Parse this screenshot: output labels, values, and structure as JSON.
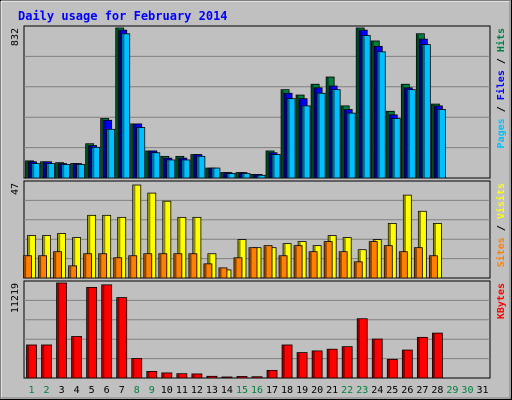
{
  "chart_data": [
    {
      "type": "bar",
      "title": "Daily usage for February 2014",
      "ylabel_parts": [
        "Pages",
        "Files",
        "Hits"
      ],
      "ytick_top": "832",
      "categories": [
        "1",
        "2",
        "3",
        "4",
        "5",
        "6",
        "7",
        "8",
        "9",
        "10",
        "11",
        "12",
        "13",
        "14",
        "15",
        "16",
        "17",
        "18",
        "19",
        "20",
        "21",
        "22",
        "23",
        "24",
        "25",
        "26",
        "27",
        "28",
        "29",
        "30",
        "31"
      ],
      "ylim": [
        0,
        832
      ],
      "series": [
        {
          "name": "Hits",
          "color": "#008040",
          "values": [
            95,
            90,
            85,
            80,
            190,
            330,
            832,
            300,
            150,
            120,
            120,
            130,
            55,
            30,
            30,
            20,
            150,
            490,
            460,
            520,
            560,
            400,
            832,
            760,
            370,
            520,
            800,
            410,
            0,
            0,
            0
          ]
        },
        {
          "name": "Files",
          "color": "#0000ff",
          "values": [
            90,
            90,
            80,
            80,
            180,
            320,
            820,
            300,
            150,
            110,
            110,
            130,
            55,
            30,
            30,
            20,
            140,
            470,
            440,
            500,
            510,
            380,
            820,
            730,
            350,
            500,
            770,
            400,
            0,
            0,
            0
          ]
        },
        {
          "name": "Pages",
          "color": "#00c0ff",
          "values": [
            80,
            80,
            75,
            75,
            170,
            270,
            800,
            280,
            140,
            100,
            100,
            120,
            55,
            25,
            25,
            15,
            130,
            440,
            400,
            470,
            490,
            360,
            790,
            700,
            330,
            490,
            740,
            380,
            0,
            0,
            0
          ]
        }
      ]
    },
    {
      "type": "bar",
      "ylabel_parts": [
        "Sites",
        "Visits"
      ],
      "ytick_top": "47",
      "categories": [
        "1",
        "2",
        "3",
        "4",
        "5",
        "6",
        "7",
        "8",
        "9",
        "10",
        "11",
        "12",
        "13",
        "14",
        "15",
        "16",
        "17",
        "18",
        "19",
        "20",
        "21",
        "22",
        "23",
        "24",
        "25",
        "26",
        "27",
        "28",
        "29",
        "30",
        "31"
      ],
      "ylim": [
        0,
        47
      ],
      "series": [
        {
          "name": "Visits",
          "color": "#ffff00",
          "values": [
            21,
            21,
            22,
            20,
            31,
            31,
            30,
            46,
            42,
            38,
            30,
            30,
            12,
            4,
            19,
            15,
            15,
            17,
            18,
            16,
            21,
            20,
            14,
            19,
            27,
            41,
            33,
            27,
            0,
            0,
            0
          ]
        },
        {
          "name": "Sites",
          "color": "#ff8000",
          "values": [
            11,
            11,
            13,
            6,
            12,
            12,
            10,
            11,
            12,
            12,
            12,
            12,
            7,
            5,
            10,
            15,
            16,
            11,
            16,
            13,
            18,
            13,
            8,
            18,
            16,
            13,
            15,
            11,
            0,
            0,
            0
          ]
        }
      ]
    },
    {
      "type": "bar",
      "ylabel_parts": [
        "KBytes"
      ],
      "ytick_top": "11219",
      "categories": [
        "1",
        "2",
        "3",
        "4",
        "5",
        "6",
        "7",
        "8",
        "9",
        "10",
        "11",
        "12",
        "13",
        "14",
        "15",
        "16",
        "17",
        "18",
        "19",
        "20",
        "21",
        "22",
        "23",
        "24",
        "25",
        "26",
        "27",
        "28",
        "29",
        "30",
        "31"
      ],
      "ylim": [
        0,
        11219
      ],
      "series": [
        {
          "name": "KBytes",
          "color": "#ff0000",
          "values": [
            3900,
            3900,
            11219,
            4900,
            10700,
            11000,
            9500,
            2300,
            780,
            600,
            510,
            480,
            200,
            120,
            180,
            150,
            900,
            3900,
            3000,
            3200,
            3400,
            3700,
            7000,
            4600,
            2200,
            3300,
            4800,
            5300,
            0,
            0,
            0
          ]
        }
      ]
    }
  ],
  "x_labels": [
    {
      "text": "1",
      "color": "#008040"
    },
    {
      "text": "2",
      "color": "#008040"
    },
    {
      "text": "3",
      "color": "#000000"
    },
    {
      "text": "4",
      "color": "#000000"
    },
    {
      "text": "5",
      "color": "#000000"
    },
    {
      "text": "6",
      "color": "#000000"
    },
    {
      "text": "7",
      "color": "#000000"
    },
    {
      "text": "8",
      "color": "#008040"
    },
    {
      "text": "9",
      "color": "#008040"
    },
    {
      "text": "10",
      "color": "#000000"
    },
    {
      "text": "11",
      "color": "#000000"
    },
    {
      "text": "12",
      "color": "#000000"
    },
    {
      "text": "13",
      "color": "#000000"
    },
    {
      "text": "14",
      "color": "#000000"
    },
    {
      "text": "15",
      "color": "#008040"
    },
    {
      "text": "16",
      "color": "#008040"
    },
    {
      "text": "17",
      "color": "#000000"
    },
    {
      "text": "18",
      "color": "#000000"
    },
    {
      "text": "19",
      "color": "#000000"
    },
    {
      "text": "20",
      "color": "#000000"
    },
    {
      "text": "21",
      "color": "#000000"
    },
    {
      "text": "22",
      "color": "#008040"
    },
    {
      "text": "23",
      "color": "#008040"
    },
    {
      "text": "24",
      "color": "#000000"
    },
    {
      "text": "25",
      "color": "#000000"
    },
    {
      "text": "26",
      "color": "#000000"
    },
    {
      "text": "27",
      "color": "#000000"
    },
    {
      "text": "28",
      "color": "#000000"
    },
    {
      "text": "29",
      "color": "#008040"
    },
    {
      "text": "30",
      "color": "#008040"
    },
    {
      "text": "31",
      "color": "#000000"
    }
  ],
  "colors": {
    "background": "#c0c0c0",
    "title": "#0000ff",
    "grid": "#808080"
  }
}
